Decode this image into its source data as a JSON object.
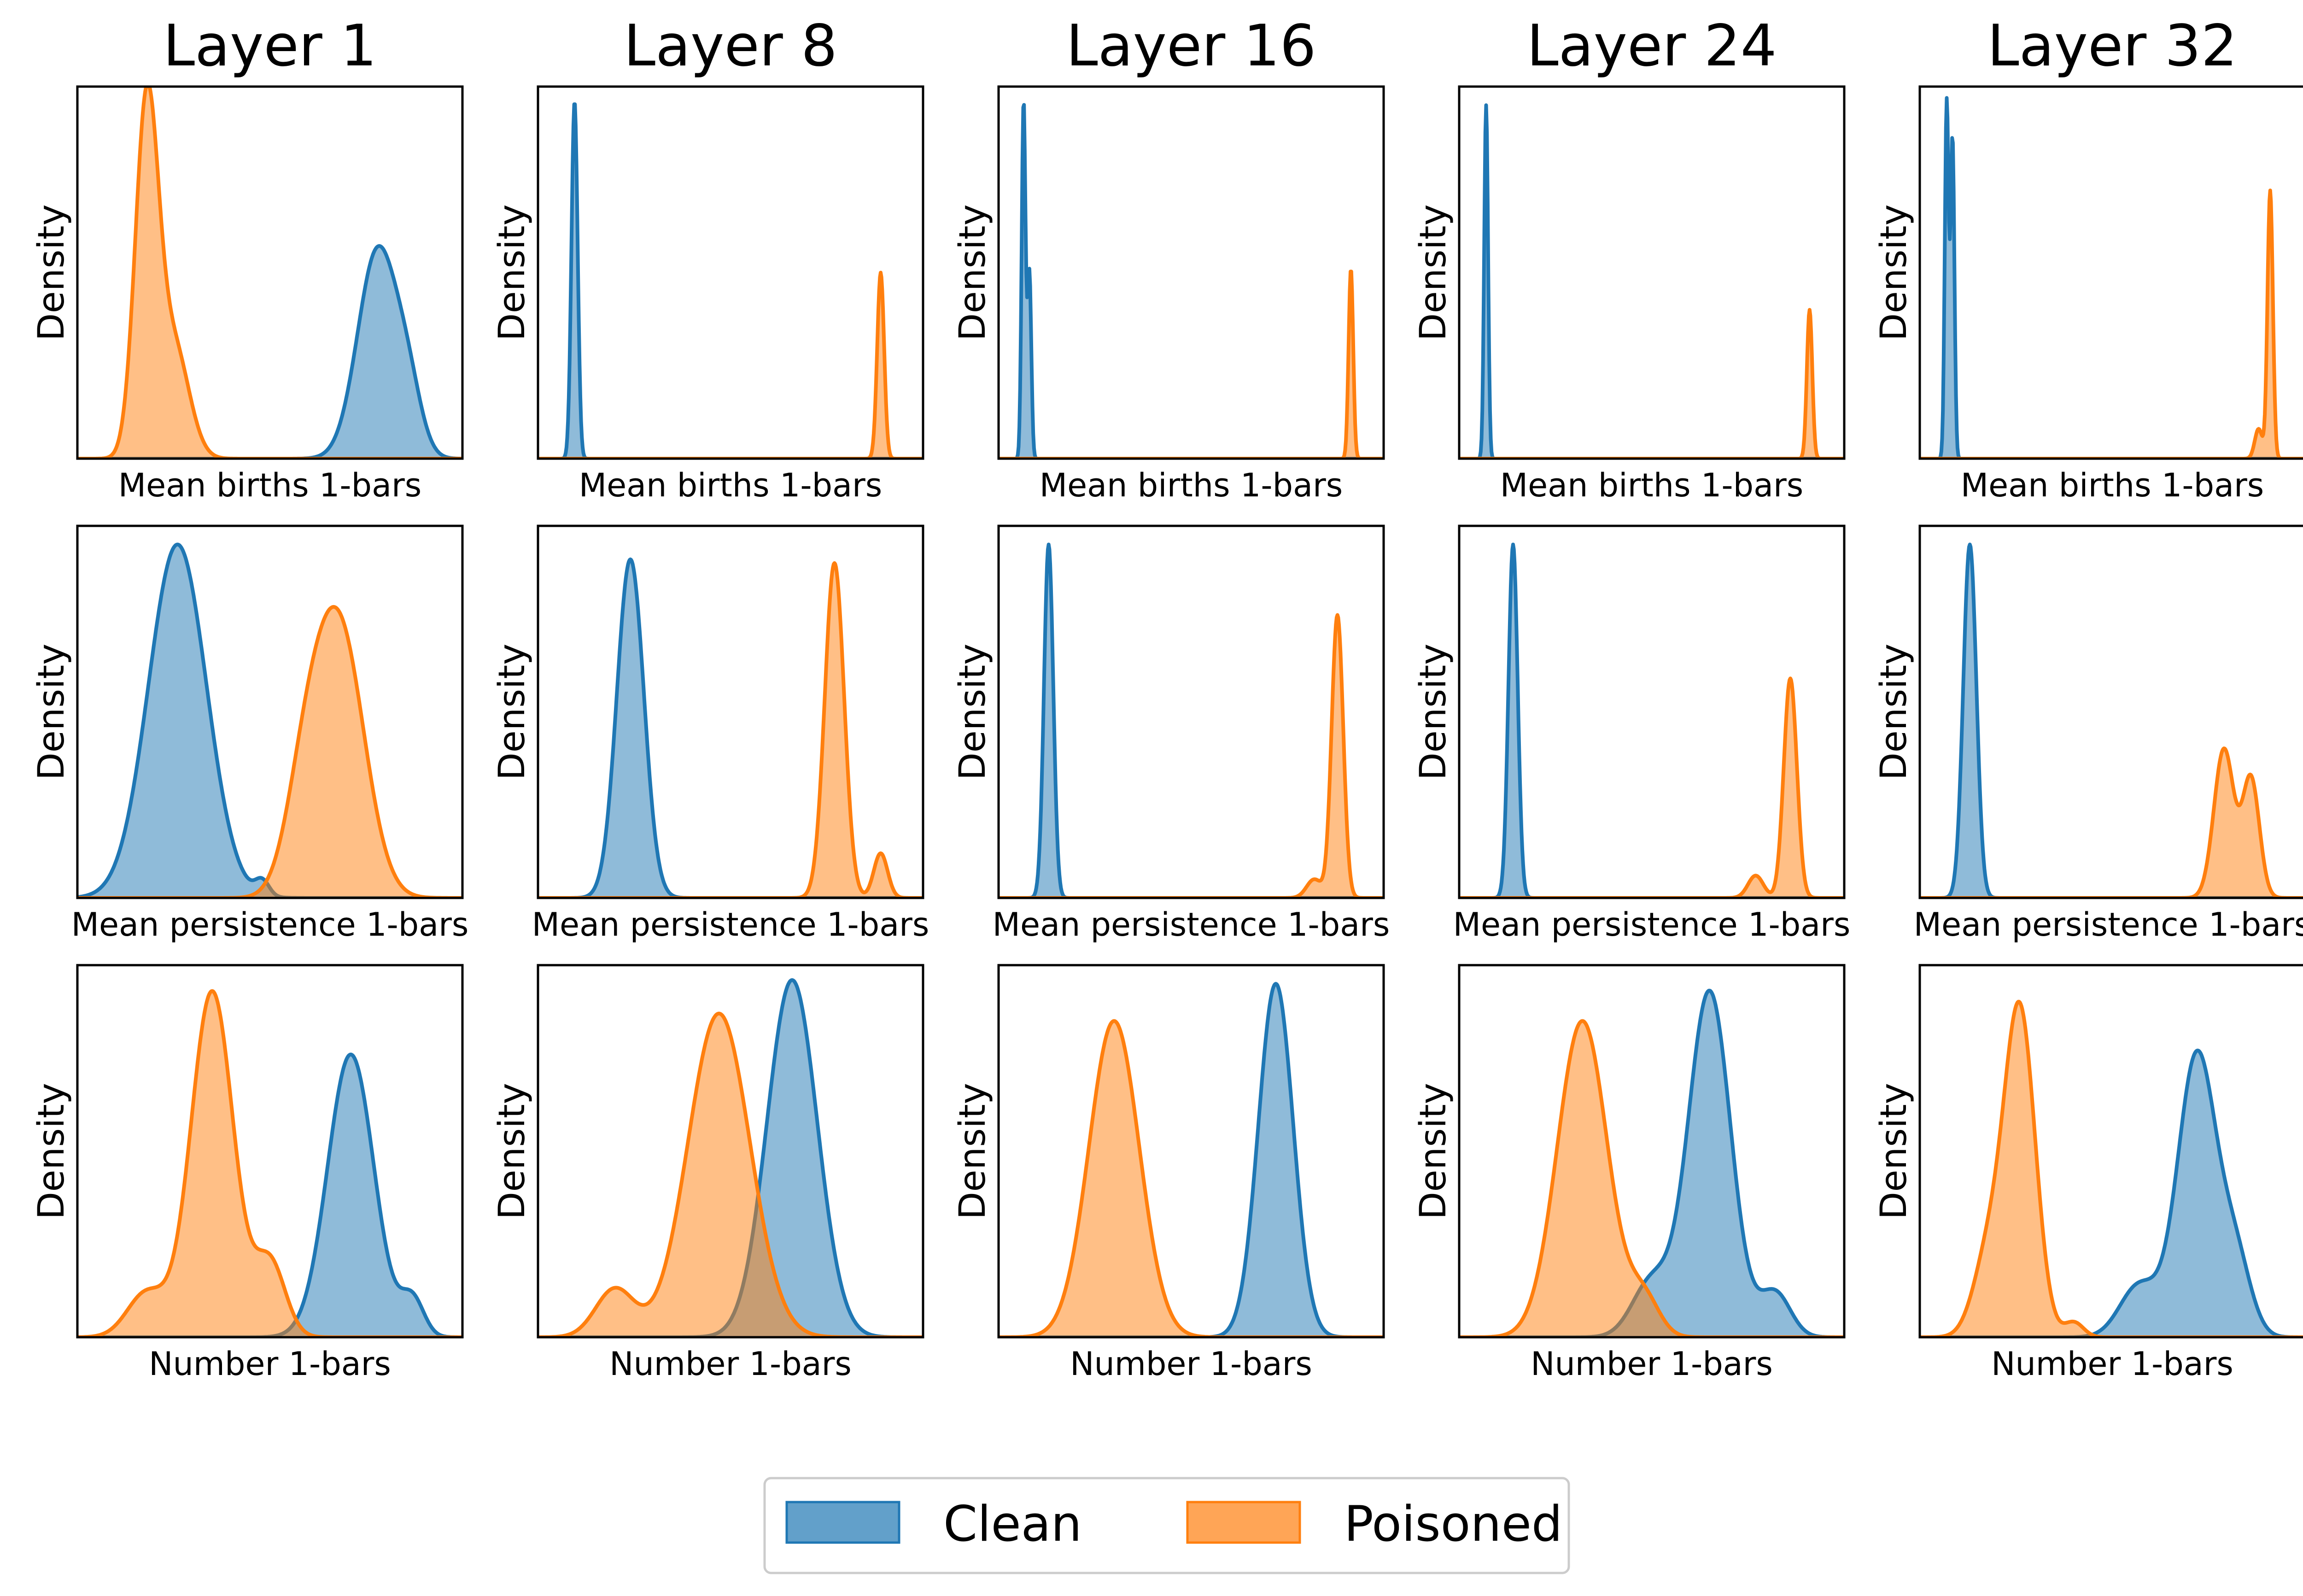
{
  "chart_data": {
    "type": "kde-grid",
    "column_titles": [
      "Layer 1",
      "Layer 8",
      "Layer 16",
      "Layer 24",
      "Layer 32"
    ],
    "row_xlabels": [
      "Mean births 1-bars",
      "Mean persistence 1-bars",
      "Number 1-bars"
    ],
    "ylabel": "Density",
    "x_tick_labels": false,
    "y_tick_labels": false,
    "legend": {
      "placement": "bottom-center",
      "entries": [
        {
          "name": "Clean",
          "color": "#1f77b4"
        },
        {
          "name": "Poisoned",
          "color": "#ff7f0e"
        }
      ]
    },
    "xlim": [
      0,
      1
    ],
    "ylim": [
      0,
      1
    ],
    "panels": [
      [
        {
          "clean": [
            {
              "center": 0.78,
              "width": 0.052,
              "height": 0.56
            },
            {
              "center": 0.86,
              "width": 0.035,
              "height": 0.14
            }
          ],
          "poisoned": [
            {
              "center": 0.18,
              "width": 0.03,
              "height": 0.94
            },
            {
              "center": 0.25,
              "width": 0.04,
              "height": 0.3
            }
          ]
        },
        {
          "clean": [
            {
              "center": 0.26,
              "width": 0.075,
              "height": 0.95
            },
            {
              "center": 0.48,
              "width": 0.018,
              "height": 0.04
            }
          ],
          "poisoned": [
            {
              "center": 0.68,
              "width": 0.065,
              "height": 0.72
            },
            {
              "center": 0.59,
              "width": 0.05,
              "height": 0.25
            }
          ]
        },
        {
          "clean": [
            {
              "center": 0.71,
              "width": 0.06,
              "height": 0.76
            },
            {
              "center": 0.87,
              "width": 0.03,
              "height": 0.1
            }
          ],
          "poisoned": [
            {
              "center": 0.35,
              "width": 0.055,
              "height": 0.93
            },
            {
              "center": 0.18,
              "width": 0.05,
              "height": 0.12
            },
            {
              "center": 0.5,
              "width": 0.04,
              "height": 0.2
            }
          ]
        }
      ],
      [
        {
          "clean": [
            {
              "center": 0.095,
              "width": 0.008,
              "height": 0.96
            }
          ],
          "poisoned": [
            {
              "center": 0.89,
              "width": 0.009,
              "height": 0.5
            }
          ]
        },
        {
          "clean": [
            {
              "center": 0.24,
              "width": 0.035,
              "height": 0.91
            }
          ],
          "poisoned": [
            {
              "center": 0.77,
              "width": 0.025,
              "height": 0.9
            },
            {
              "center": 0.89,
              "width": 0.018,
              "height": 0.12
            }
          ]
        },
        {
          "clean": [
            {
              "center": 0.66,
              "width": 0.065,
              "height": 0.96
            }
          ],
          "poisoned": [
            {
              "center": 0.47,
              "width": 0.08,
              "height": 0.87
            },
            {
              "center": 0.2,
              "width": 0.05,
              "height": 0.13
            }
          ]
        }
      ],
      [
        {
          "clean": [
            {
              "center": 0.065,
              "width": 0.005,
              "height": 0.96
            },
            {
              "center": 0.08,
              "width": 0.005,
              "height": 0.5
            }
          ],
          "poisoned": [
            {
              "center": 0.915,
              "width": 0.006,
              "height": 0.51
            }
          ]
        },
        {
          "clean": [
            {
              "center": 0.13,
              "width": 0.012,
              "height": 0.95
            }
          ],
          "poisoned": [
            {
              "center": 0.88,
              "width": 0.015,
              "height": 0.76
            },
            {
              "center": 0.82,
              "width": 0.02,
              "height": 0.05
            }
          ]
        },
        {
          "clean": [
            {
              "center": 0.72,
              "width": 0.045,
              "height": 0.95
            }
          ],
          "poisoned": [
            {
              "center": 0.3,
              "width": 0.065,
              "height": 0.85
            }
          ]
        }
      ],
      [
        {
          "clean": [
            {
              "center": 0.07,
              "width": 0.005,
              "height": 0.95
            }
          ],
          "poisoned": [
            {
              "center": 0.91,
              "width": 0.007,
              "height": 0.4
            }
          ]
        },
        {
          "clean": [
            {
              "center": 0.14,
              "width": 0.012,
              "height": 0.95
            }
          ],
          "poisoned": [
            {
              "center": 0.86,
              "width": 0.017,
              "height": 0.59
            },
            {
              "center": 0.77,
              "width": 0.02,
              "height": 0.06
            }
          ]
        },
        {
          "clean": [
            {
              "center": 0.65,
              "width": 0.055,
              "height": 0.93
            },
            {
              "center": 0.5,
              "width": 0.05,
              "height": 0.15
            },
            {
              "center": 0.82,
              "width": 0.04,
              "height": 0.12
            }
          ],
          "poisoned": [
            {
              "center": 0.32,
              "width": 0.065,
              "height": 0.85
            },
            {
              "center": 0.48,
              "width": 0.04,
              "height": 0.1
            }
          ]
        }
      ],
      [
        {
          "clean": [
            {
              "center": 0.07,
              "width": 0.005,
              "height": 0.96
            },
            {
              "center": 0.085,
              "width": 0.005,
              "height": 0.86
            }
          ],
          "poisoned": [
            {
              "center": 0.91,
              "width": 0.007,
              "height": 0.72
            },
            {
              "center": 0.88,
              "width": 0.01,
              "height": 0.08
            }
          ]
        },
        {
          "clean": [
            {
              "center": 0.13,
              "width": 0.017,
              "height": 0.95
            }
          ],
          "poisoned": [
            {
              "center": 0.79,
              "width": 0.026,
              "height": 0.4
            },
            {
              "center": 0.86,
              "width": 0.022,
              "height": 0.32
            }
          ]
        },
        {
          "clean": [
            {
              "center": 0.72,
              "width": 0.05,
              "height": 0.76
            },
            {
              "center": 0.82,
              "width": 0.04,
              "height": 0.2
            },
            {
              "center": 0.57,
              "width": 0.05,
              "height": 0.14
            }
          ],
          "poisoned": [
            {
              "center": 0.26,
              "width": 0.04,
              "height": 0.87
            },
            {
              "center": 0.18,
              "width": 0.04,
              "height": 0.22
            },
            {
              "center": 0.4,
              "width": 0.025,
              "height": 0.04
            }
          ]
        }
      ]
    ]
  }
}
